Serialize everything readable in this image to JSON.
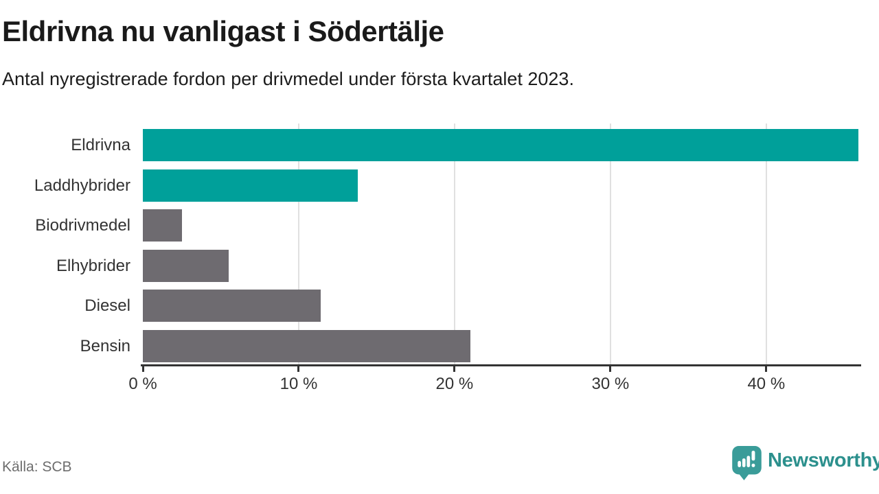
{
  "header": {
    "title": "Eldrivna nu vanligast i Södertälje",
    "subtitle": "Antal nyregistrerade fordon per drivmedel under första kvartalet 2023."
  },
  "footer": {
    "source": "Källa: SCB",
    "brand": "Newsworthy"
  },
  "colors": {
    "teal": "#00a09a",
    "gray": "#6e6b70",
    "gridline": "#e0e0e0",
    "axis": "#333333",
    "text_dark": "#1a1a1a",
    "text_muted": "#6d6d6d",
    "logo": "#3a9c99",
    "logo_text": "#2c908d"
  },
  "chart_data": {
    "type": "bar",
    "orientation": "horizontal",
    "title": "Eldrivna nu vanligast i Södertälje",
    "subtitle": "Antal nyregistrerade fordon per drivmedel under första kvartalet 2023.",
    "source": "Källa: SCB",
    "unit": "%",
    "categories": [
      "Eldrivna",
      "Laddhybrider",
      "Biodrivmedel",
      "Elhybrider",
      "Diesel",
      "Bensin"
    ],
    "values": [
      45.9,
      13.8,
      2.5,
      5.5,
      11.4,
      21.0
    ],
    "bar_colors": [
      "#00a09a",
      "#00a09a",
      "#6e6b70",
      "#6e6b70",
      "#6e6b70",
      "#6e6b70"
    ],
    "xlim": [
      0,
      46
    ],
    "xticks": [
      {
        "value": 0,
        "label": "0 %"
      },
      {
        "value": 10,
        "label": "10 %"
      },
      {
        "value": 20,
        "label": "20 %"
      },
      {
        "value": 30,
        "label": "30 %"
      },
      {
        "value": 40,
        "label": "40 %"
      }
    ],
    "grid": "vertical-gridlines-on",
    "legend": false
  }
}
